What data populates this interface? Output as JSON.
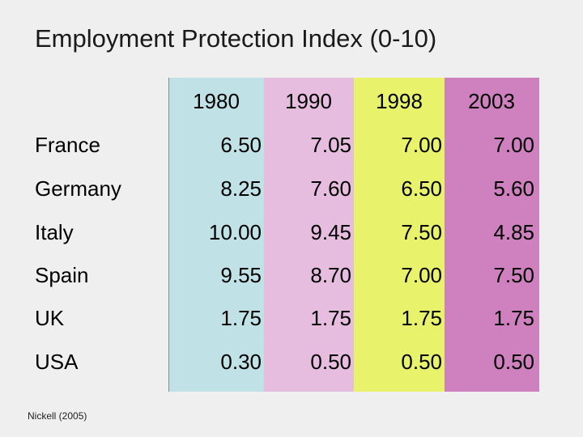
{
  "title": "Employment Protection Index (0-10)",
  "source": "Nickell (2005)",
  "chart_data": {
    "type": "table",
    "title": "Employment Protection Index (0-10)",
    "columns": [
      "1980",
      "1990",
      "1998",
      "2003"
    ],
    "column_colors": [
      "#c0e2e6",
      "#e6bcdf",
      "#e8f26b",
      "#cf80bf"
    ],
    "rows": [
      {
        "country": "France",
        "values": [
          "6.50",
          "7.05",
          "7.00",
          "7.00"
        ]
      },
      {
        "country": "Germany",
        "values": [
          "8.25",
          "7.60",
          "6.50",
          "5.60"
        ]
      },
      {
        "country": "Italy",
        "values": [
          "10.00",
          "9.45",
          "7.50",
          "4.85"
        ]
      },
      {
        "country": "Spain",
        "values": [
          "9.55",
          "8.70",
          "7.00",
          "7.50"
        ]
      },
      {
        "country": "UK",
        "values": [
          "1.75",
          "1.75",
          "1.75",
          "1.75"
        ]
      },
      {
        "country": "USA",
        "values": [
          "0.30",
          "0.50",
          "0.50",
          "0.50"
        ]
      }
    ]
  }
}
